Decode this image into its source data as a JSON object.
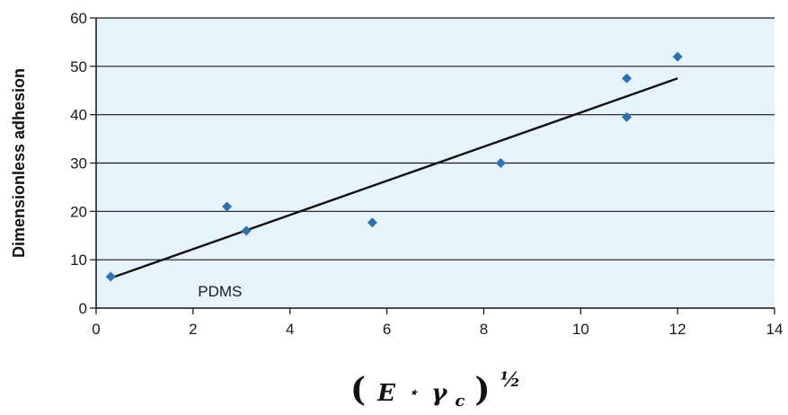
{
  "chart_data": {
    "type": "scatter",
    "title": "",
    "ylabel": "Dimensionless adhesion",
    "xlabel": {
      "base": "E",
      "star": "⋆",
      "gamma": "γ",
      "subscript": "c",
      "exponent": "½",
      "open_paren": "(",
      "close_paren": ")"
    },
    "xlim": [
      0,
      14
    ],
    "ylim": [
      0,
      60
    ],
    "xticks": [
      0,
      2,
      4,
      6,
      8,
      10,
      12,
      14
    ],
    "yticks": [
      0,
      10,
      20,
      30,
      40,
      50,
      60
    ],
    "xtick_labels": [
      "0",
      "2",
      "4",
      "6",
      "8",
      "10",
      "12",
      "14"
    ],
    "ytick_labels": [
      "0",
      "10",
      "20",
      "30",
      "40",
      "50",
      "60"
    ],
    "grid": "horizontal",
    "points": [
      {
        "x": 0.3,
        "y": 6.5
      },
      {
        "x": 2.7,
        "y": 21
      },
      {
        "x": 3.1,
        "y": 16
      },
      {
        "x": 5.7,
        "y": 17.7
      },
      {
        "x": 8.35,
        "y": 30
      },
      {
        "x": 10.95,
        "y": 47.5
      },
      {
        "x": 10.95,
        "y": 39.5
      },
      {
        "x": 12.0,
        "y": 52
      }
    ],
    "trendline": {
      "x": [
        0.3,
        12.0
      ],
      "y": [
        6.2,
        47.5
      ]
    },
    "annotation": {
      "text": "PDMS",
      "x": 2.1,
      "y": 3.5
    },
    "colors": {
      "marker": "#2a72b8",
      "plot_background": "#e6f3fa",
      "gridline": "#1a1a1a",
      "trendline": "#111111"
    }
  }
}
